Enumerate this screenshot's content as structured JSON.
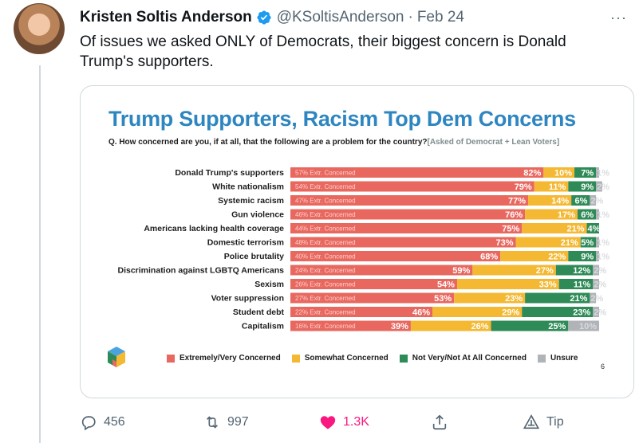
{
  "tweet": {
    "author_name": "Kristen Soltis Anderson",
    "handle": "@KSoltisAnderson",
    "separator": "·",
    "date": "Feb 24",
    "more": "···",
    "text": "Of issues we asked ONLY of Democrats, their biggest concern is Donald Trump's supporters."
  },
  "actions": {
    "reply_count": "456",
    "retweet_count": "997",
    "like_count": "1.3K",
    "tip_label": "Tip"
  },
  "colors": {
    "concerned": "#e8685f",
    "somewhat": "#f4b833",
    "not_concerned": "#2e8b57",
    "unsure": "#b0b3b8",
    "title": "#2e86c1",
    "like": "#f91880",
    "verified": "#1d9bf0"
  },
  "chart_data": {
    "type": "bar",
    "stacked": true,
    "orientation": "horizontal",
    "title": "Trump Supporters, Racism Top Dem Concerns",
    "question": "Q. How concerned are you, if at all, that the following are a problem for the country?",
    "question_note": "[Asked of Democrat + Lean Voters]",
    "extreme_label_suffix": "Extr. Concerned",
    "categories": [
      "Donald Trump's supporters",
      "White nationalism",
      "Systemic racism",
      "Gun violence",
      "Americans lacking health coverage",
      "Domestic terrorism",
      "Police brutality",
      "Discrimination against LGBTQ Americans",
      "Sexism",
      "Voter suppression",
      "Student debt",
      "Capitalism"
    ],
    "extremely_concerned": [
      57,
      54,
      47,
      46,
      44,
      48,
      40,
      24,
      26,
      27,
      22,
      16
    ],
    "series": [
      {
        "name": "Extremely/Very Concerned",
        "values": [
          82,
          79,
          77,
          76,
          75,
          73,
          68,
          59,
          54,
          53,
          46,
          39
        ]
      },
      {
        "name": "Somewhat Concerned",
        "values": [
          10,
          11,
          14,
          17,
          21,
          21,
          22,
          27,
          33,
          23,
          29,
          26
        ]
      },
      {
        "name": "Not Very/Not At All Concerned",
        "values": [
          7,
          9,
          6,
          6,
          4,
          5,
          9,
          12,
          11,
          21,
          23,
          25
        ]
      },
      {
        "name": "Unsure",
        "values": [
          1,
          2,
          2,
          1,
          0,
          1,
          1,
          2,
          2,
          2,
          2,
          10
        ]
      }
    ],
    "xlim": [
      0,
      100
    ],
    "legend_position": "bottom",
    "page_number": "6"
  }
}
